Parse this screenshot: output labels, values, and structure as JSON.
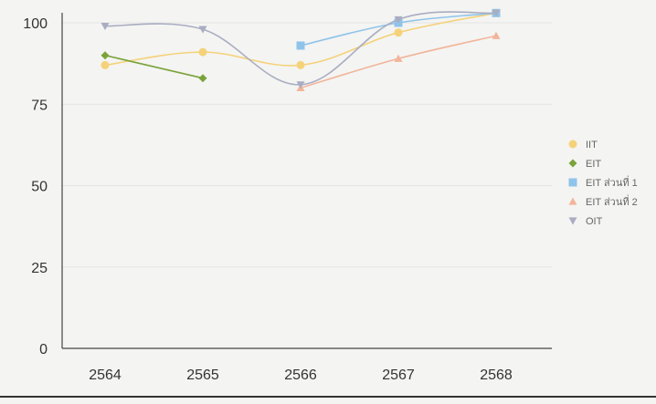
{
  "chart_data": {
    "type": "line",
    "title": "",
    "xlabel": "",
    "ylabel": "",
    "categories": [
      "2564",
      "2565",
      "2566",
      "2567",
      "2568"
    ],
    "ylim": [
      0,
      100
    ],
    "yticks": [
      "0",
      "25",
      "50",
      "75",
      "100"
    ],
    "grid": true,
    "legend_position": "right",
    "series": [
      {
        "name": "IIT",
        "color": "#f5d27a",
        "marker": "circle",
        "values": [
          87,
          91,
          87,
          97,
          103
        ]
      },
      {
        "name": "EIT",
        "color": "#7aa33a",
        "marker": "diamond",
        "values": [
          90,
          83,
          null,
          null,
          null
        ]
      },
      {
        "name": "EIT ส่วนที่ 1",
        "color": "#8fc4ea",
        "marker": "square",
        "values": [
          null,
          null,
          93,
          100,
          103
        ]
      },
      {
        "name": "EIT ส่วนที่ 2",
        "color": "#f2b59a",
        "marker": "triangle",
        "values": [
          null,
          null,
          80,
          89,
          96
        ]
      },
      {
        "name": "OIT",
        "color": "#a9adc2",
        "marker": "triangle-down",
        "values": [
          99,
          98,
          81,
          101,
          103
        ]
      }
    ]
  }
}
